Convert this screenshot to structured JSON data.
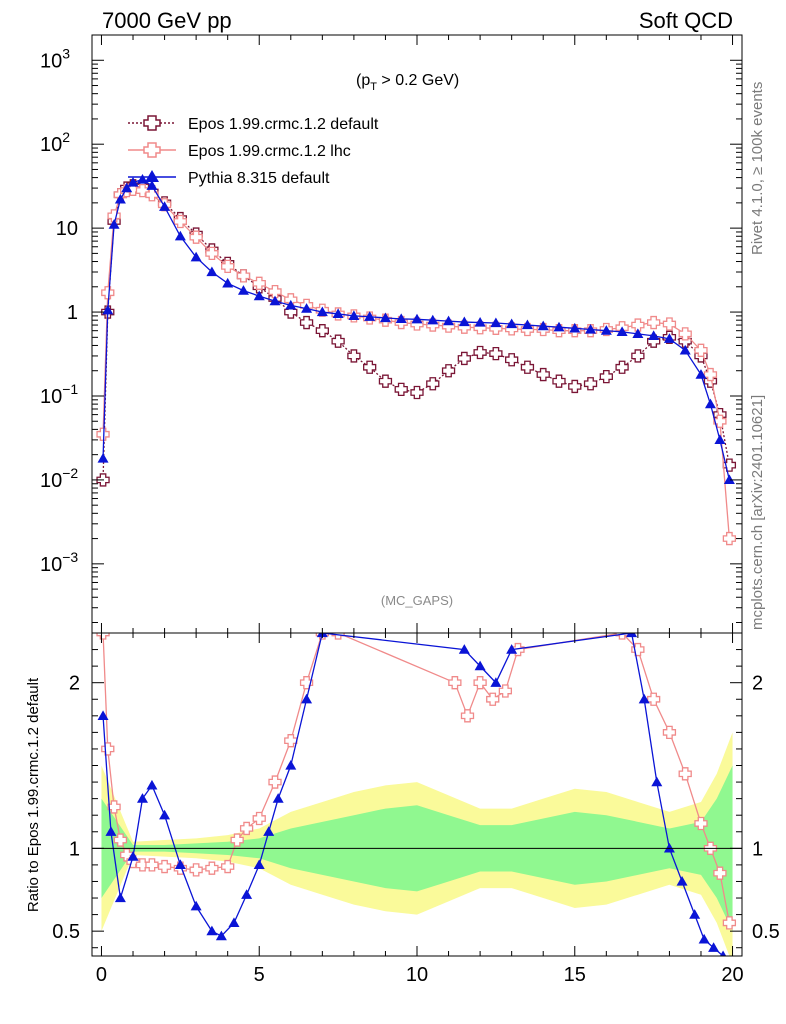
{
  "header": {
    "left": "7000 GeV pp",
    "right": "Soft QCD"
  },
  "side_labels": {
    "upper": "Rivet 4.1.0, ≥ 100k events",
    "lower": "mcplots.cern.ch [arXiv:2401.10621]"
  },
  "chart_data": {
    "type": "line",
    "title": "(pT > 0.2 GeV)",
    "title_parts": {
      "base": "(p",
      "sub": "T",
      "rest": " > 0.2 GeV)"
    },
    "analysis_label": "(MC_GAPS)",
    "xlim": [
      -0.3,
      20.3
    ],
    "ylim_main": [
      0.00015,
      2000
    ],
    "ylim_ratio": [
      0.35,
      2.3
    ],
    "ylabel_ratio": "Ratio to Epos 1.99.crmc.1.2 default",
    "x_ticks": [
      "0",
      "5",
      "10",
      "15",
      "20"
    ],
    "y_ticks_main": [
      {
        "base": "10",
        "exp": "3",
        "value": 1000
      },
      {
        "base": "10",
        "exp": "2",
        "value": 100
      },
      {
        "base": "10",
        "exp": "",
        "value": 10
      },
      {
        "base": "1",
        "exp": "",
        "value": 1
      },
      {
        "base": "10",
        "exp": "−1",
        "value": 0.1
      },
      {
        "base": "10",
        "exp": "−2",
        "value": 0.01
      },
      {
        "base": "10",
        "exp": "−3",
        "value": 0.001
      }
    ],
    "y_ticks_ratio": [
      {
        "label": "2",
        "value": 2
      },
      {
        "label": "1",
        "value": 1
      },
      {
        "label": "0.5",
        "value": 0.5
      }
    ],
    "colors": {
      "epos_default": "#7a1535",
      "epos_lhc": "#f08a8a",
      "pythia": "#0a14d6",
      "band_inner": "#90f890",
      "band_outer": "#fafa9a"
    },
    "series": [
      {
        "name": "Epos 1.99.crmc.1.2 default",
        "key": "epos_default",
        "marker": "open-cross",
        "dashed": true,
        "x": [
          0.05,
          0.2,
          0.4,
          0.6,
          0.8,
          1.0,
          1.3,
          1.6,
          2.0,
          2.5,
          3.0,
          3.5,
          4.0,
          4.5,
          5.0,
          5.5,
          6.0,
          6.5,
          7.0,
          7.5,
          8.0,
          8.5,
          9.0,
          9.5,
          10.0,
          10.5,
          11.0,
          11.5,
          12.0,
          12.5,
          13.0,
          13.5,
          14.0,
          14.5,
          15.0,
          15.5,
          16.0,
          16.5,
          17.0,
          17.5,
          18.0,
          18.5,
          19.0,
          19.3,
          19.6,
          19.9
        ],
        "y": [
          0.01,
          1.0,
          12,
          25,
          30,
          32,
          31,
          27,
          20,
          13,
          8.5,
          5.5,
          3.8,
          2.7,
          2.0,
          1.45,
          1.0,
          0.75,
          0.6,
          0.45,
          0.3,
          0.22,
          0.15,
          0.12,
          0.11,
          0.14,
          0.2,
          0.28,
          0.33,
          0.32,
          0.27,
          0.22,
          0.18,
          0.15,
          0.13,
          0.14,
          0.17,
          0.22,
          0.3,
          0.45,
          0.5,
          0.45,
          0.3,
          0.15,
          0.06,
          0.015
        ]
      },
      {
        "name": "Epos 1.99.crmc.1.2 lhc",
        "key": "epos_lhc",
        "marker": "open-cross",
        "dashed": false,
        "x": [
          0.05,
          0.2,
          0.4,
          0.6,
          0.8,
          1.0,
          1.3,
          1.6,
          2.0,
          2.5,
          3.0,
          3.5,
          4.0,
          4.5,
          5.0,
          5.5,
          6.0,
          6.5,
          7.0,
          7.5,
          8.0,
          8.5,
          9.0,
          9.5,
          10.0,
          10.5,
          11.0,
          11.5,
          12.0,
          12.5,
          13.0,
          13.5,
          14.0,
          14.5,
          15.0,
          15.5,
          16.0,
          16.5,
          17.0,
          17.5,
          18.0,
          18.5,
          19.0,
          19.3,
          19.6,
          19.9
        ],
        "y": [
          0.035,
          1.7,
          14,
          25,
          28,
          29,
          28,
          25,
          19,
          12,
          7.8,
          5.0,
          3.5,
          2.7,
          2.2,
          1.75,
          1.4,
          1.2,
          1.05,
          0.95,
          0.9,
          0.85,
          0.8,
          0.75,
          0.72,
          0.7,
          0.68,
          0.66,
          0.65,
          0.64,
          0.63,
          0.62,
          0.62,
          0.6,
          0.6,
          0.6,
          0.62,
          0.65,
          0.7,
          0.75,
          0.72,
          0.55,
          0.35,
          0.18,
          0.05,
          0.002
        ]
      },
      {
        "name": "Pythia 8.315 default",
        "key": "pythia",
        "marker": "filled-triangle",
        "dashed": false,
        "x": [
          0.05,
          0.2,
          0.4,
          0.6,
          0.8,
          1.0,
          1.3,
          1.6,
          2.0,
          2.5,
          3.0,
          3.5,
          4.0,
          4.5,
          5.0,
          5.5,
          6.0,
          6.5,
          7.0,
          7.5,
          8.0,
          8.5,
          9.0,
          9.5,
          10.0,
          10.5,
          11.0,
          11.5,
          12.0,
          12.5,
          13.0,
          13.5,
          14.0,
          14.5,
          15.0,
          15.5,
          16.0,
          16.5,
          17.0,
          17.5,
          18.0,
          18.5,
          19.0,
          19.3,
          19.6,
          19.9
        ],
        "y": [
          0.018,
          1.05,
          11,
          22,
          30,
          35,
          38,
          32,
          18,
          8.0,
          4.5,
          3.0,
          2.2,
          1.8,
          1.55,
          1.35,
          1.2,
          1.1,
          1.0,
          0.95,
          0.9,
          0.88,
          0.85,
          0.83,
          0.82,
          0.8,
          0.78,
          0.76,
          0.75,
          0.74,
          0.72,
          0.7,
          0.68,
          0.66,
          0.64,
          0.62,
          0.6,
          0.58,
          0.55,
          0.52,
          0.48,
          0.35,
          0.18,
          0.08,
          0.03,
          0.01
        ]
      }
    ],
    "ratio_series": [
      {
        "key": "epos_lhc",
        "x": [
          0.05,
          0.2,
          0.4,
          0.6,
          0.8,
          1.0,
          1.3,
          1.6,
          2.0,
          2.5,
          3.0,
          3.5,
          4.0,
          4.3,
          4.6,
          5.0,
          5.5,
          6.0,
          6.5,
          7.0,
          7.5,
          11.2,
          11.6,
          12.0,
          12.4,
          12.8,
          13.2,
          16.5,
          17.0,
          17.5,
          18.0,
          18.5,
          19.0,
          19.3,
          19.6,
          19.9
        ],
        "y": [
          2.3,
          1.6,
          1.25,
          1.05,
          0.96,
          0.92,
          0.9,
          0.9,
          0.89,
          0.88,
          0.87,
          0.88,
          0.89,
          1.05,
          1.12,
          1.18,
          1.4,
          1.65,
          2.0,
          2.3,
          2.3,
          2.0,
          1.8,
          2.0,
          1.9,
          1.95,
          2.2,
          2.3,
          2.2,
          1.9,
          1.7,
          1.45,
          1.15,
          1.0,
          0.85,
          0.55
        ]
      },
      {
        "key": "pythia",
        "x": [
          0.05,
          0.3,
          0.6,
          1.0,
          1.3,
          1.6,
          2.0,
          2.5,
          3.0,
          3.5,
          3.8,
          4.2,
          4.6,
          5.0,
          5.3,
          5.6,
          6.0,
          6.5,
          7.0,
          11.5,
          12.0,
          12.5,
          13.0,
          16.8,
          17.2,
          17.6,
          18.0,
          18.4,
          18.8,
          19.1,
          19.4,
          19.7
        ],
        "y": [
          1.8,
          1.1,
          0.7,
          0.95,
          1.3,
          1.38,
          1.2,
          0.9,
          0.65,
          0.5,
          0.47,
          0.55,
          0.72,
          0.9,
          1.1,
          1.3,
          1.5,
          1.9,
          2.3,
          2.2,
          2.1,
          2.0,
          2.2,
          2.3,
          1.9,
          1.4,
          1.0,
          0.8,
          0.6,
          0.45,
          0.4,
          0.35
        ]
      }
    ],
    "uncertainty_band": {
      "x": [
        0.0,
        1.0,
        2.0,
        3.0,
        4.0,
        5.0,
        6.0,
        7.0,
        8.0,
        9.0,
        10.0,
        11.0,
        12.0,
        13.0,
        14.0,
        15.0,
        16.0,
        17.0,
        18.0,
        19.0,
        19.5,
        20.0
      ],
      "inner": [
        0.3,
        0.02,
        0.02,
        0.03,
        0.04,
        0.06,
        0.12,
        0.16,
        0.2,
        0.24,
        0.26,
        0.2,
        0.14,
        0.14,
        0.18,
        0.22,
        0.2,
        0.16,
        0.12,
        0.16,
        0.3,
        0.5
      ],
      "outer": [
        0.5,
        0.04,
        0.05,
        0.06,
        0.08,
        0.12,
        0.22,
        0.28,
        0.34,
        0.38,
        0.4,
        0.32,
        0.24,
        0.24,
        0.3,
        0.36,
        0.34,
        0.28,
        0.22,
        0.28,
        0.45,
        0.7
      ]
    }
  }
}
